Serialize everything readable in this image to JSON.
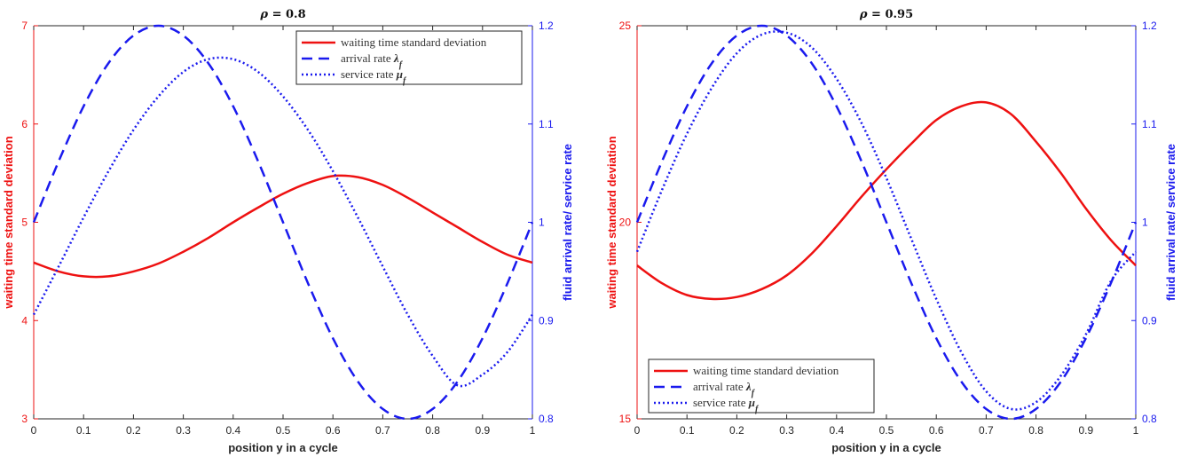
{
  "chart_data": [
    {
      "type": "line",
      "title": "ρ = 0.8",
      "xlabel": "position y in a cycle",
      "ylabel_left": "waiting time standard deviation",
      "ylabel_right": "fluid arrival rate/ service rate",
      "xlim": [
        0,
        1
      ],
      "ylim_left": [
        3,
        7
      ],
      "ylim_right": [
        0.8,
        1.2
      ],
      "x_ticks": [
        "0",
        "0.1",
        "0.2",
        "0.3",
        "0.4",
        "0.5",
        "0.6",
        "0.7",
        "0.8",
        "0.9",
        "1"
      ],
      "y_ticks_left": [
        "3",
        "4",
        "5",
        "6",
        "7"
      ],
      "y_ticks_right": [
        "0.8",
        "0.9",
        "1",
        "1.1",
        "1.2"
      ],
      "legend_position": "top-right",
      "left_color": "#ee1111",
      "right_color": "#1a1aee",
      "series": [
        {
          "name": "waiting time standard deviation",
          "axis": "left",
          "style": "solid",
          "color": "#ee1111",
          "x": [
            0,
            0.05,
            0.1,
            0.15,
            0.2,
            0.25,
            0.3,
            0.35,
            0.4,
            0.45,
            0.5,
            0.55,
            0.6,
            0.65,
            0.7,
            0.75,
            0.8,
            0.85,
            0.9,
            0.95,
            1
          ],
          "y": [
            4.59,
            4.5,
            4.45,
            4.45,
            4.5,
            4.58,
            4.7,
            4.84,
            5.0,
            5.15,
            5.29,
            5.4,
            5.47,
            5.46,
            5.38,
            5.25,
            5.1,
            4.95,
            4.8,
            4.67,
            4.59
          ]
        },
        {
          "name": "arrival rate λ_f",
          "axis": "right",
          "style": "dashed",
          "color": "#1a1aee",
          "x": [
            0,
            0.05,
            0.1,
            0.15,
            0.2,
            0.25,
            0.3,
            0.35,
            0.4,
            0.45,
            0.5,
            0.55,
            0.6,
            0.65,
            0.7,
            0.75,
            0.8,
            0.85,
            0.9,
            0.95,
            1
          ],
          "y": [
            1.0,
            1.062,
            1.118,
            1.162,
            1.19,
            1.2,
            1.19,
            1.162,
            1.118,
            1.062,
            1.0,
            0.938,
            0.882,
            0.838,
            0.81,
            0.8,
            0.81,
            0.838,
            0.882,
            0.938,
            1.0
          ]
        },
        {
          "name": "service rate μ_f",
          "axis": "right",
          "style": "dotted",
          "color": "#1a1aee",
          "x": [
            0,
            0.05,
            0.1,
            0.15,
            0.2,
            0.25,
            0.3,
            0.35,
            0.4,
            0.45,
            0.5,
            0.55,
            0.6,
            0.65,
            0.7,
            0.75,
            0.8,
            0.85,
            0.9,
            0.95,
            1
          ],
          "y": [
            0.906,
            0.955,
            1.005,
            1.052,
            1.094,
            1.128,
            1.153,
            1.166,
            1.166,
            1.153,
            1.128,
            1.094,
            1.052,
            1.005,
            0.955,
            0.906,
            0.864,
            0.834,
            0.845,
            0.868,
            0.906
          ]
        }
      ]
    },
    {
      "type": "line",
      "title": "ρ = 0.95",
      "xlabel": "position y in a cycle",
      "ylabel_left": "waiting time standard deviation",
      "ylabel_right": "fluid arrival rate/ service rate",
      "xlim": [
        0,
        1
      ],
      "ylim_left": [
        15,
        25
      ],
      "ylim_right": [
        0.8,
        1.2
      ],
      "x_ticks": [
        "0",
        "0.1",
        "0.2",
        "0.3",
        "0.4",
        "0.5",
        "0.6",
        "0.7",
        "0.8",
        "0.9",
        "1"
      ],
      "y_ticks_left": [
        "15",
        "20",
        "25"
      ],
      "y_ticks_right": [
        "0.8",
        "0.9",
        "1",
        "1.1",
        "1.2"
      ],
      "legend_position": "bottom-left",
      "left_color": "#ee1111",
      "right_color": "#1a1aee",
      "series": [
        {
          "name": "waiting time standard deviation",
          "axis": "left",
          "style": "solid",
          "color": "#ee1111",
          "x": [
            0,
            0.05,
            0.1,
            0.15,
            0.2,
            0.25,
            0.3,
            0.35,
            0.4,
            0.45,
            0.5,
            0.55,
            0.6,
            0.65,
            0.7,
            0.75,
            0.8,
            0.85,
            0.9,
            0.95,
            1
          ],
          "y": [
            18.9,
            18.45,
            18.15,
            18.05,
            18.1,
            18.3,
            18.65,
            19.2,
            19.9,
            20.65,
            21.35,
            22.0,
            22.6,
            22.95,
            23.05,
            22.75,
            22.05,
            21.25,
            20.35,
            19.55,
            18.9
          ]
        },
        {
          "name": "arrival rate λ_f",
          "axis": "right",
          "style": "dashed",
          "color": "#1a1aee",
          "x": [
            0,
            0.05,
            0.1,
            0.15,
            0.2,
            0.25,
            0.3,
            0.35,
            0.4,
            0.45,
            0.5,
            0.55,
            0.6,
            0.65,
            0.7,
            0.75,
            0.8,
            0.85,
            0.9,
            0.95,
            1
          ],
          "y": [
            1.0,
            1.062,
            1.118,
            1.162,
            1.19,
            1.2,
            1.19,
            1.162,
            1.118,
            1.062,
            1.0,
            0.938,
            0.882,
            0.838,
            0.81,
            0.8,
            0.81,
            0.838,
            0.882,
            0.938,
            1.0
          ]
        },
        {
          "name": "service rate μ_f",
          "axis": "right",
          "style": "dotted",
          "color": "#1a1aee",
          "x": [
            0,
            0.05,
            0.1,
            0.15,
            0.2,
            0.25,
            0.3,
            0.35,
            0.4,
            0.45,
            0.5,
            0.55,
            0.6,
            0.65,
            0.7,
            0.75,
            0.8,
            0.85,
            0.9,
            0.95,
            1
          ],
          "y": [
            0.97,
            1.033,
            1.09,
            1.137,
            1.172,
            1.191,
            1.193,
            1.178,
            1.146,
            1.101,
            1.045,
            0.983,
            0.922,
            0.868,
            0.828,
            0.81,
            0.817,
            0.844,
            0.886,
            0.94,
            0.97
          ]
        }
      ]
    }
  ]
}
